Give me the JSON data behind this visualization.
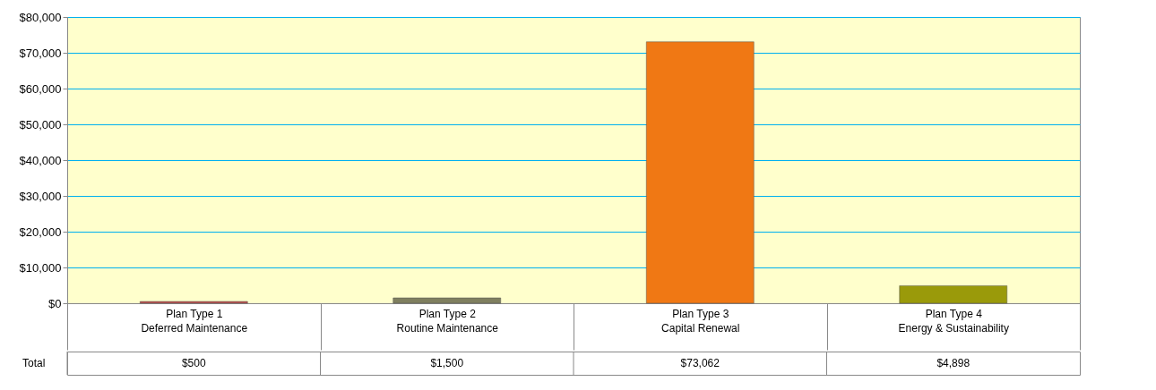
{
  "chart_data": {
    "type": "bar",
    "categories": [
      "Plan Type 1\nDeferred Maintenance",
      "Plan Type 2\nRoutine Maintenance",
      "Plan Type  3\nCapital Renewal",
      "Plan Type  4\nEnergy & Sustainability"
    ],
    "series": [
      {
        "name": "Total",
        "values": [
          500,
          1500,
          73062,
          4898
        ],
        "value_labels": [
          "$500",
          "$1,500",
          "$73,062",
          "$4,898"
        ]
      }
    ],
    "colors": [
      "#c0504d",
      "#7f7f5f",
      "#f07814",
      "#9a9a0a"
    ],
    "ylim": [
      0,
      80000
    ],
    "yticks": [
      {
        "value": 0,
        "label": "$0"
      },
      {
        "value": 10000,
        "label": "$10,000"
      },
      {
        "value": 20000,
        "label": "$20,000"
      },
      {
        "value": 30000,
        "label": "$30,000"
      },
      {
        "value": 40000,
        "label": "$40,000"
      },
      {
        "value": 50000,
        "label": "$50,000"
      },
      {
        "value": 60000,
        "label": "$60,000"
      },
      {
        "value": 70000,
        "label": "$70,000"
      },
      {
        "value": 80000,
        "label": "$80,000"
      }
    ],
    "grid": "y",
    "legend": "bottom"
  }
}
